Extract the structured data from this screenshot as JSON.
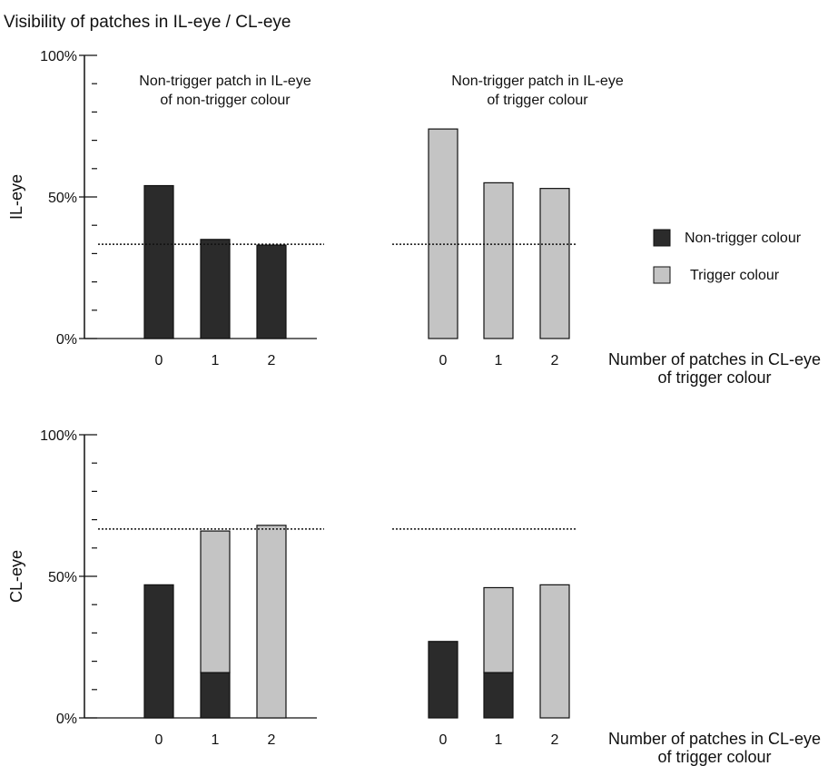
{
  "figure_title": "Visibility of patches in IL-eye / CL-eye",
  "colors": {
    "non_trigger": "#2b2b2b",
    "trigger": "#c4c4c4",
    "outline": "#111111"
  },
  "legend": {
    "items": [
      {
        "label": "Non-trigger colour",
        "color": "#2b2b2b"
      },
      {
        "label": "Trigger colour",
        "color": "#c4c4c4"
      }
    ]
  },
  "chart_data": [
    {
      "type": "bar",
      "stacked": true,
      "ylabel": "IL-eye",
      "ylim": [
        0,
        100
      ],
      "yticks": [
        "0%",
        "50%",
        "100%"
      ],
      "xlabel": [
        "Number of patches in CL-eye",
        "of trigger colour"
      ],
      "groups": [
        {
          "title": [
            "Non-trigger patch in IL-eye",
            "of non-trigger colour"
          ],
          "categories": [
            "0",
            "1",
            "2"
          ],
          "series": [
            {
              "name": "Non-trigger colour",
              "values": [
                54,
                35,
                33
              ]
            },
            {
              "name": "Trigger colour",
              "values": [
                0,
                0,
                0
              ]
            }
          ],
          "reference_line": 33.3
        },
        {
          "title": [
            "Non-trigger patch in IL-eye",
            "of trigger colour"
          ],
          "categories": [
            "0",
            "1",
            "2"
          ],
          "series": [
            {
              "name": "Non-trigger colour",
              "values": [
                0,
                0,
                0
              ]
            },
            {
              "name": "Trigger colour",
              "values": [
                74,
                55,
                53
              ]
            }
          ],
          "reference_line": 33.3
        }
      ]
    },
    {
      "type": "bar",
      "stacked": true,
      "ylabel": "CL-eye",
      "ylim": [
        0,
        100
      ],
      "yticks": [
        "0%",
        "50%",
        "100%"
      ],
      "xlabel": [
        "Number of patches in CL-eye",
        "of trigger colour"
      ],
      "groups": [
        {
          "title": [
            "",
            ""
          ],
          "categories": [
            "0",
            "1",
            "2"
          ],
          "series": [
            {
              "name": "Non-trigger colour",
              "values": [
                47,
                16,
                0
              ]
            },
            {
              "name": "Trigger colour",
              "values": [
                0,
                50,
                68
              ]
            }
          ],
          "reference_line": 66.7
        },
        {
          "title": [
            "",
            ""
          ],
          "categories": [
            "0",
            "1",
            "2"
          ],
          "series": [
            {
              "name": "Non-trigger colour",
              "values": [
                27,
                16,
                0
              ]
            },
            {
              "name": "Trigger colour",
              "values": [
                0,
                30,
                47
              ]
            }
          ],
          "reference_line": 66.7
        }
      ]
    }
  ]
}
